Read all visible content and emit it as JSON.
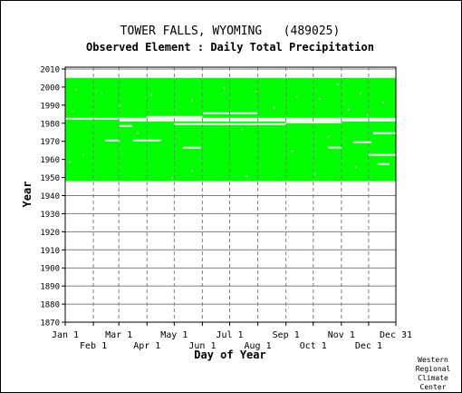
{
  "page": {
    "title": "TOWER FALLS, WYOMING   (489025)",
    "subtitle": "Observed Element : Daily Total Precipitation",
    "credit": [
      "Western",
      "Regional",
      "Climate",
      "Center"
    ]
  },
  "chart_data": {
    "type": "heatmap",
    "title": "TOWER FALLS, WYOMING   (489025)",
    "subtitle": "Observed Element : Daily Total Precipitation",
    "xlabel": "Day of Year",
    "ylabel": "Year",
    "x_tick_labels_upper": [
      "Jan 1",
      "Mar 1",
      "May 1",
      "Jul 1",
      "Sep 1",
      "Nov 1",
      "Dec 31"
    ],
    "x_tick_labels_lower": [
      "Feb 1",
      "Apr 1",
      "Jun 1",
      "Aug 1",
      "Oct 1",
      "Dec 1"
    ],
    "x_tick_days": [
      1,
      32,
      60,
      91,
      121,
      152,
      182,
      213,
      244,
      274,
      305,
      335,
      365
    ],
    "xlim": [
      1,
      365
    ],
    "y_ticks": [
      1870,
      1880,
      1890,
      1900,
      1910,
      1920,
      1930,
      1940,
      1950,
      1960,
      1970,
      1980,
      1990,
      2000,
      2010
    ],
    "ylim": [
      1870,
      2011
    ],
    "grid": true,
    "data_color": "#00ff00",
    "record_years": [
      1948,
      2004
    ],
    "missing_segments": [
      {
        "year": 1982,
        "start_day": 1,
        "end_day": 365
      },
      {
        "year": 1981,
        "start_day": 60,
        "end_day": 365
      },
      {
        "year": 1985,
        "start_day": 152,
        "end_day": 213
      },
      {
        "year": 1983,
        "start_day": 91,
        "end_day": 152
      },
      {
        "year": 1979,
        "start_day": 121,
        "end_day": 244
      },
      {
        "year": 1980,
        "start_day": 244,
        "end_day": 305
      },
      {
        "year": 1970,
        "start_day": 45,
        "end_day": 61
      },
      {
        "year": 1970,
        "start_day": 76,
        "end_day": 107
      },
      {
        "year": 1966,
        "start_day": 130,
        "end_day": 150
      },
      {
        "year": 1966,
        "start_day": 290,
        "end_day": 305
      },
      {
        "year": 1969,
        "start_day": 318,
        "end_day": 338
      },
      {
        "year": 1974,
        "start_day": 340,
        "end_day": 365
      },
      {
        "year": 1962,
        "start_day": 335,
        "end_day": 365
      },
      {
        "year": 1957,
        "start_day": 345,
        "end_day": 358
      },
      {
        "year": 1978,
        "start_day": 60,
        "end_day": 75
      }
    ],
    "missing_dots": [
      [
        1998,
        12
      ],
      [
        1996,
        40
      ],
      [
        1995,
        95
      ],
      [
        1992,
        140
      ],
      [
        1999,
        175
      ],
      [
        1997,
        210
      ],
      [
        1994,
        255
      ],
      [
        1993,
        280
      ],
      [
        2001,
        300
      ],
      [
        1996,
        325
      ],
      [
        1991,
        350
      ],
      [
        1989,
        60
      ],
      [
        1988,
        230
      ],
      [
        1987,
        312
      ],
      [
        1986,
        8
      ],
      [
        1984,
        333
      ],
      [
        1976,
        195
      ],
      [
        1974,
        80
      ],
      [
        1972,
        290
      ],
      [
        1964,
        250
      ],
      [
        1962,
        20
      ],
      [
        1958,
        5
      ],
      [
        1955,
        320
      ],
      [
        1953,
        140
      ],
      [
        1950,
        200
      ],
      [
        1949,
        118
      ],
      [
        1951,
        275
      ]
    ]
  }
}
